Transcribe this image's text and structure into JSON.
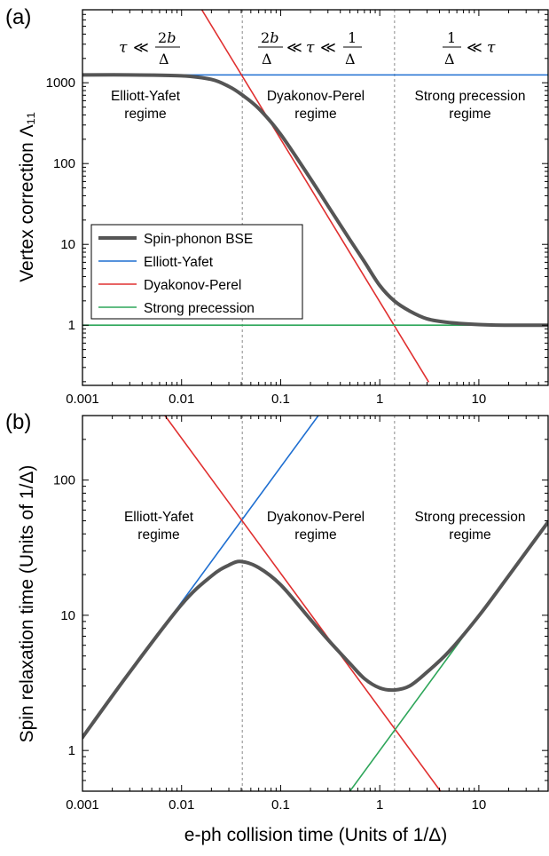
{
  "chart_data": [
    {
      "panel": "(a)",
      "type": "line",
      "xlabel": "",
      "ylabel": "Vertex correction Λ₁₁",
      "xscale": "log",
      "yscale": "log",
      "xlim": [
        0.001,
        50
      ],
      "ylim": [
        0.18,
        8000
      ],
      "xticks": [
        "0.001",
        "0.01",
        "0.1",
        "1",
        "10"
      ],
      "yticks": [
        "1",
        "10",
        "100",
        "1000"
      ],
      "regions": [
        {
          "condition": "τ ≪ 2b/Δ",
          "label_line1": "Elliott-Yafet",
          "label_line2": "regime"
        },
        {
          "condition": "2b/Δ ≪ τ ≪ 1/Δ",
          "label_line1": "Dyakonov-Perel",
          "label_line2": "regime"
        },
        {
          "condition": "1/Δ ≪ τ",
          "label_line1": "Strong precession",
          "label_line2": "regime"
        }
      ],
      "vlines": [
        0.041,
        1.41
      ],
      "legend": {
        "position": "left-middle"
      },
      "series": [
        {
          "name": "Spin-phonon BSE",
          "color": "#555555",
          "x": [
            0.001,
            0.003,
            0.01,
            0.02,
            0.03,
            0.04,
            0.06,
            0.1,
            0.2,
            0.3,
            0.5,
            0.7,
            1,
            1.4,
            2,
            3,
            5,
            10,
            20,
            50
          ],
          "y": [
            1250,
            1250,
            1220,
            1100,
            900,
            720,
            480,
            230,
            65,
            30,
            11.4,
            6.1,
            3.1,
            2.0,
            1.5,
            1.2,
            1.08,
            1.02,
            1.0,
            1.0
          ]
        },
        {
          "name": "Elliott-Yafet",
          "color": "#1f6fd1",
          "x": [
            0.001,
            50
          ],
          "y": [
            1250,
            1250
          ]
        },
        {
          "name": "Dyakonov-Perel",
          "color": "#e03030",
          "x": [
            0.016,
            3.1
          ],
          "y": [
            8000,
            0.2
          ]
        },
        {
          "name": "Strong precession",
          "color": "#2ea65a",
          "x": [
            0.001,
            50
          ],
          "y": [
            1,
            1
          ]
        }
      ]
    },
    {
      "panel": "(b)",
      "type": "line",
      "xlabel": "e-ph collision time (Units of 1/Δ)",
      "ylabel": "Spin relaxation time (Units of 1/Δ)",
      "xscale": "log",
      "yscale": "log",
      "xlim": [
        0.001,
        50
      ],
      "ylim": [
        0.5,
        300
      ],
      "xticks": [
        "0.001",
        "0.01",
        "0.1",
        "1",
        "10"
      ],
      "yticks": [
        "1",
        "10",
        "100"
      ],
      "regions": [
        {
          "label_line1": "Elliott-Yafet",
          "label_line2": "regime"
        },
        {
          "label_line1": "Dyakonov-Perel",
          "label_line2": "regime"
        },
        {
          "label_line1": "Strong precession",
          "label_line2": "regime"
        }
      ],
      "vlines": [
        0.041,
        1.41
      ],
      "series": [
        {
          "name": "Spin-phonon BSE",
          "color": "#555555",
          "x": [
            0.001,
            0.003,
            0.01,
            0.02,
            0.03,
            0.04,
            0.06,
            0.1,
            0.2,
            0.3,
            0.5,
            0.7,
            1,
            1.4,
            2,
            3,
            5,
            10,
            20,
            50
          ],
          "y": [
            1.25,
            3.8,
            12,
            19.5,
            23.5,
            25,
            22.5,
            16.8,
            9.3,
            6.6,
            4.4,
            3.4,
            2.9,
            2.8,
            3.0,
            3.8,
            5.4,
            9.9,
            19.6,
            49
          ]
        },
        {
          "name": "Elliott-Yafet",
          "color": "#1f6fd1",
          "x": [
            0.006,
            0.24
          ],
          "y": [
            7.5,
            300
          ]
        },
        {
          "name": "Dyakonov-Perel",
          "color": "#e03030",
          "x": [
            0.0068,
            4.1
          ],
          "y": [
            300,
            0.5
          ]
        },
        {
          "name": "Strong precession",
          "color": "#2ea65a",
          "x": [
            0.5,
            8
          ],
          "y": [
            0.5,
            8
          ]
        }
      ]
    }
  ]
}
